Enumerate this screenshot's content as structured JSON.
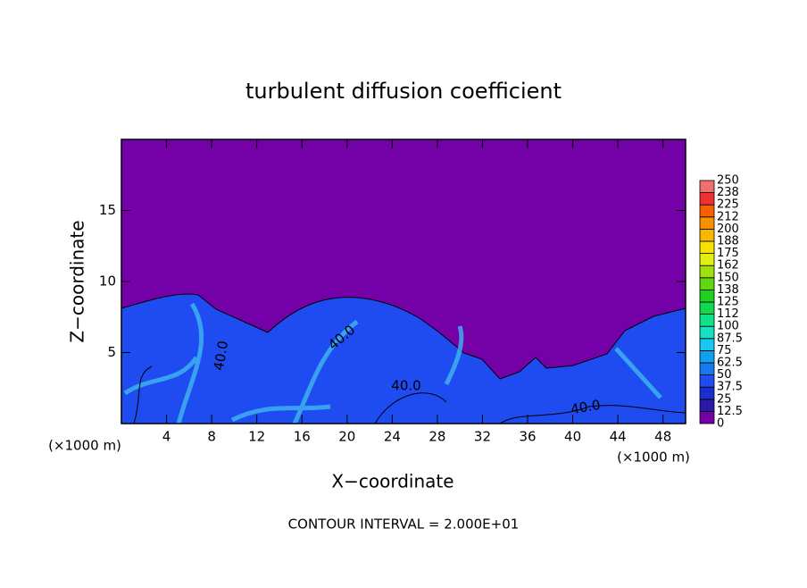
{
  "chart_data": {
    "type": "contour",
    "title": "turbulent diffusion coefficient",
    "xlabel": "X−coordinate",
    "ylabel": "Z−coordinate",
    "x_unit_label": "(×1000 m)",
    "footer": "CONTOUR INTERVAL = 2.000E+01",
    "xlim": [
      0,
      50
    ],
    "xticks": [
      4,
      8,
      12,
      16,
      20,
      24,
      28,
      32,
      36,
      40,
      44,
      48
    ],
    "ylim": [
      0,
      20
    ],
    "yticks": [
      5,
      10,
      15
    ],
    "colorbar": {
      "levels": [
        0,
        12.5,
        25,
        37.5,
        50,
        62.5,
        75,
        87.5,
        100,
        {
          "value": 112.5,
          "label": "112"
        },
        125,
        {
          "value": 137.5,
          "label": "138"
        },
        150,
        {
          "value": 162.5,
          "label": "162"
        },
        175,
        {
          "value": 187.5,
          "label": "188"
        },
        200,
        {
          "value": 212.5,
          "label": "212"
        },
        225,
        {
          "value": 237.5,
          "label": "238"
        },
        250
      ],
      "colors": [
        "#7400a8",
        "#2a18a8",
        "#1830d0",
        "#1e4cf0",
        "#1878f0",
        "#10a0f0",
        "#18c8f0",
        "#18e0c0",
        "#10e088",
        "#10d850",
        "#20d020",
        "#60d810",
        "#a0e010",
        "#e0f010",
        "#f8e000",
        "#f8b800",
        "#f89000",
        "#f86000",
        "#f03030",
        "#f07070"
      ]
    },
    "contour_labels": [
      {
        "value": 40,
        "label": "40.0"
      },
      {
        "value": 40,
        "label": "40.0"
      },
      {
        "value": 40,
        "label": "40.0"
      },
      {
        "value": 40,
        "label": "40.0"
      }
    ]
  }
}
